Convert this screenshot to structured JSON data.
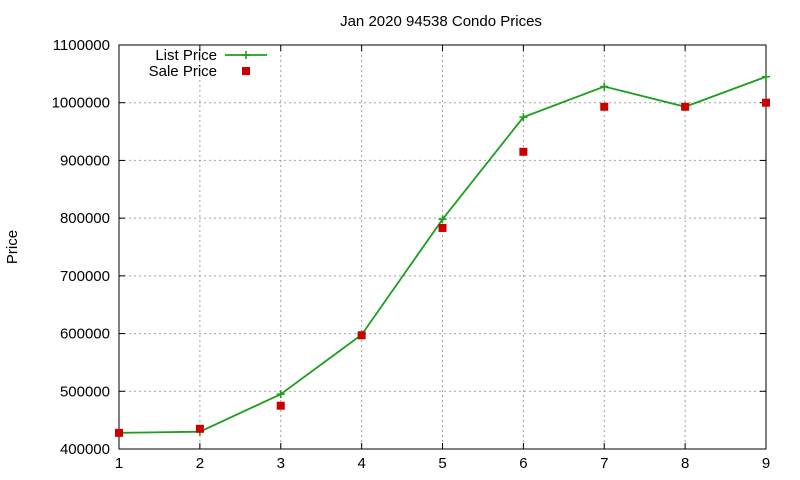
{
  "chart_data": {
    "type": "line",
    "title": "Jan 2020 94538 Condo Prices",
    "xlabel": "",
    "ylabel": "Price",
    "x": [
      1,
      2,
      3,
      4,
      5,
      6,
      7,
      8,
      9
    ],
    "xlim": [
      1,
      9
    ],
    "ylim": [
      400000,
      1100000
    ],
    "xticks": [
      1,
      2,
      3,
      4,
      5,
      6,
      7,
      8,
      9
    ],
    "yticks": [
      400000,
      500000,
      600000,
      700000,
      800000,
      900000,
      1000000,
      1100000
    ],
    "grid": true,
    "legend_position": "top-left",
    "series": [
      {
        "name": "List Price",
        "style": "line-with-plus-markers",
        "color": "#1e9e1e",
        "values": [
          428000,
          430000,
          495000,
          598000,
          798000,
          975000,
          1028000,
          993000,
          1045000
        ]
      },
      {
        "name": "Sale Price",
        "style": "square-markers",
        "color": "#cc0000",
        "values": [
          428000,
          435000,
          475000,
          597000,
          783000,
          915000,
          993000,
          993000,
          1000000
        ]
      }
    ]
  }
}
